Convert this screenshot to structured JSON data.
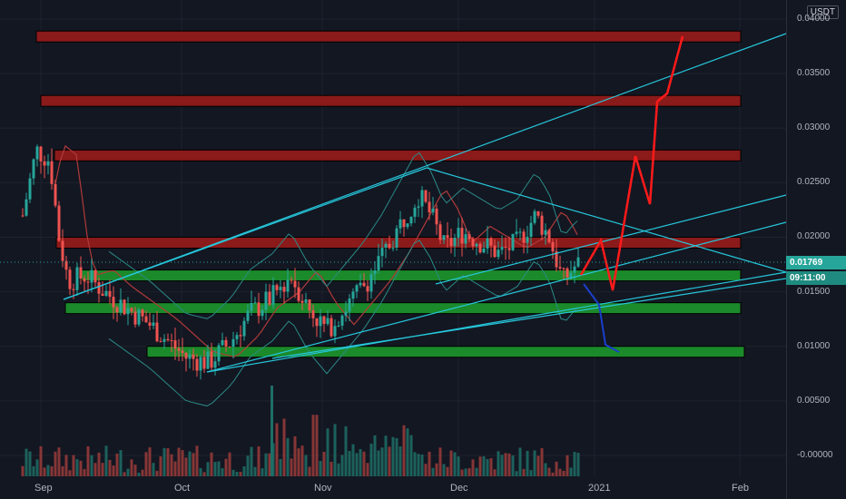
{
  "symbol_currency": "USDT",
  "price_axis": [
    "0.04000",
    "0.03500",
    "0.03000",
    "0.02500",
    "0.02000",
    "0.01500",
    "0.01000",
    "0.00500",
    "-0.00000"
  ],
  "current_price": "0.01769",
  "countdown": "09:11:00",
  "time_axis": [
    "Sep",
    "Oct",
    "Nov",
    "Dec",
    "2021",
    "Feb"
  ],
  "colors": {
    "bg": "#131722",
    "up": "#26a69a",
    "down": "#ef5350",
    "resistance": "#8b1a1a",
    "support": "#1b8a2a",
    "trendline": "#26c6da",
    "projection_up": "#ff1a1a",
    "projection_down": "#1a3fcc"
  },
  "chart_data": {
    "type": "candlestick",
    "ylim": [
      -0.002,
      0.0425
    ],
    "resistance_zones": [
      0.0384,
      0.0325,
      0.0275,
      0.0195
    ],
    "support_zones": [
      0.0165,
      0.0135,
      0.0095
    ],
    "volume_series": "bars",
    "annotations": [
      "red-upward-projection-arrows",
      "blue-downward-projection-arrow",
      "ascending-channel",
      "symmetrical-triangle",
      "bollinger-bands",
      "moving-average"
    ]
  }
}
